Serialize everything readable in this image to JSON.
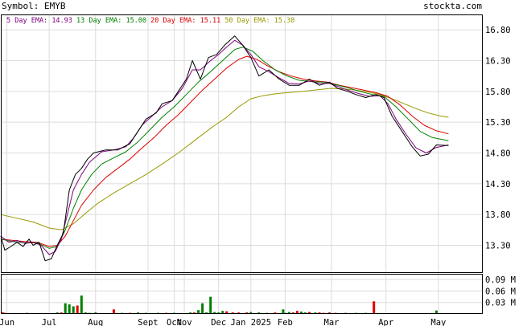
{
  "header": {
    "symbol_label": "Symbol: EMYB",
    "site": "stockta.com"
  },
  "legend": [
    {
      "label": "5 Day EMA:",
      "value": "14.93",
      "color": "#800080"
    },
    {
      "label": "13 Day EMA:",
      "value": "15.00",
      "color": "#008000"
    },
    {
      "label": "20 Day EMA:",
      "value": "15.11",
      "color": "#dd0000"
    },
    {
      "label": "50 Day EMA:",
      "value": "15.38",
      "color": "#999900"
    }
  ],
  "chart_data": {
    "type": "line",
    "price_axis": {
      "range": [
        12.85,
        17.05
      ],
      "ticks": [
        16.8,
        16.3,
        15.8,
        15.3,
        14.8,
        14.3,
        13.8,
        13.3
      ],
      "tick_labels": [
        "16.80",
        "16.30",
        "15.80",
        "15.30",
        "14.80",
        "14.30",
        "13.80",
        "13.30"
      ]
    },
    "volume_axis": {
      "range": [
        0,
        0.105
      ],
      "ticks": [
        0.09,
        0.06,
        0.03
      ],
      "tick_labels": [
        "0.09 M",
        "0.06 M",
        "0.03 M"
      ]
    },
    "x_range": [
      0,
      239
    ],
    "x_ticks": [
      {
        "label": "Jun",
        "x": 3
      },
      {
        "label": "Jul",
        "x": 24
      },
      {
        "label": "Aug",
        "x": 47
      },
      {
        "label": "Sept",
        "x": 73
      },
      {
        "label": "Oct",
        "x": 86
      },
      {
        "label": "Nov",
        "x": 91
      },
      {
        "label": "Dec",
        "x": 108
      },
      {
        "label": "Jan 2025",
        "x": 124
      },
      {
        "label": "Feb",
        "x": 141
      },
      {
        "label": "Mar",
        "x": 164
      },
      {
        "label": "Apr",
        "x": 191
      },
      {
        "label": "May",
        "x": 217
      }
    ],
    "close": [
      [
        0,
        13.45
      ],
      [
        2,
        13.22
      ],
      [
        5,
        13.28
      ],
      [
        8,
        13.35
      ],
      [
        11,
        13.28
      ],
      [
        14,
        13.4
      ],
      [
        16,
        13.3
      ],
      [
        19,
        13.35
      ],
      [
        22,
        13.05
      ],
      [
        25,
        13.08
      ],
      [
        28,
        13.3
      ],
      [
        31,
        13.5
      ],
      [
        34,
        14.2
      ],
      [
        37,
        14.45
      ],
      [
        40,
        14.55
      ],
      [
        43,
        14.7
      ],
      [
        46,
        14.8
      ],
      [
        52,
        14.85
      ],
      [
        58,
        14.85
      ],
      [
        64,
        14.95
      ],
      [
        68,
        15.15
      ],
      [
        72,
        15.35
      ],
      [
        77,
        15.45
      ],
      [
        80,
        15.6
      ],
      [
        85,
        15.65
      ],
      [
        88,
        15.8
      ],
      [
        92,
        16.0
      ],
      [
        95,
        16.3
      ],
      [
        99,
        16.0
      ],
      [
        103,
        16.35
      ],
      [
        107,
        16.4
      ],
      [
        111,
        16.55
      ],
      [
        116,
        16.7
      ],
      [
        120,
        16.55
      ],
      [
        124,
        16.35
      ],
      [
        128,
        16.05
      ],
      [
        133,
        16.15
      ],
      [
        138,
        16.0
      ],
      [
        143,
        15.9
      ],
      [
        148,
        15.9
      ],
      [
        153,
        16.0
      ],
      [
        158,
        15.9
      ],
      [
        163,
        15.95
      ],
      [
        167,
        15.85
      ],
      [
        172,
        15.8
      ],
      [
        176,
        15.75
      ],
      [
        181,
        15.7
      ],
      [
        186,
        15.75
      ],
      [
        190,
        15.7
      ],
      [
        194,
        15.4
      ],
      [
        198,
        15.2
      ],
      [
        204,
        14.9
      ],
      [
        208,
        14.75
      ],
      [
        212,
        14.78
      ],
      [
        216,
        14.93
      ],
      [
        222,
        14.92
      ]
    ],
    "series": [
      {
        "name": "5 Day EMA",
        "color": "#800080",
        "values": [
          [
            0,
            13.45
          ],
          [
            4,
            13.35
          ],
          [
            8,
            13.38
          ],
          [
            12,
            13.33
          ],
          [
            16,
            13.35
          ],
          [
            20,
            13.3
          ],
          [
            24,
            13.15
          ],
          [
            27,
            13.2
          ],
          [
            30,
            13.4
          ],
          [
            33,
            13.8
          ],
          [
            36,
            14.2
          ],
          [
            40,
            14.45
          ],
          [
            44,
            14.65
          ],
          [
            50,
            14.82
          ],
          [
            56,
            14.85
          ],
          [
            62,
            14.9
          ],
          [
            66,
            15.05
          ],
          [
            70,
            15.25
          ],
          [
            75,
            15.4
          ],
          [
            80,
            15.55
          ],
          [
            85,
            15.65
          ],
          [
            90,
            15.85
          ],
          [
            95,
            16.15
          ],
          [
            99,
            16.15
          ],
          [
            104,
            16.3
          ],
          [
            108,
            16.4
          ],
          [
            112,
            16.52
          ],
          [
            116,
            16.63
          ],
          [
            120,
            16.55
          ],
          [
            124,
            16.4
          ],
          [
            128,
            16.2
          ],
          [
            133,
            16.12
          ],
          [
            138,
            16.02
          ],
          [
            143,
            15.93
          ],
          [
            148,
            15.92
          ],
          [
            153,
            15.97
          ],
          [
            158,
            15.93
          ],
          [
            163,
            15.93
          ],
          [
            168,
            15.87
          ],
          [
            173,
            15.81
          ],
          [
            178,
            15.76
          ],
          [
            183,
            15.72
          ],
          [
            188,
            15.73
          ],
          [
            192,
            15.6
          ],
          [
            196,
            15.35
          ],
          [
            201,
            15.1
          ],
          [
            206,
            14.88
          ],
          [
            211,
            14.8
          ],
          [
            216,
            14.89
          ],
          [
            222,
            14.93
          ]
        ]
      },
      {
        "name": "13 Day EMA",
        "color": "#008000",
        "values": [
          [
            0,
            13.4
          ],
          [
            6,
            13.36
          ],
          [
            12,
            13.34
          ],
          [
            18,
            13.34
          ],
          [
            24,
            13.25
          ],
          [
            28,
            13.28
          ],
          [
            32,
            13.55
          ],
          [
            36,
            13.9
          ],
          [
            40,
            14.2
          ],
          [
            45,
            14.45
          ],
          [
            50,
            14.62
          ],
          [
            56,
            14.72
          ],
          [
            62,
            14.82
          ],
          [
            68,
            14.98
          ],
          [
            74,
            15.18
          ],
          [
            80,
            15.38
          ],
          [
            86,
            15.55
          ],
          [
            92,
            15.75
          ],
          [
            98,
            15.95
          ],
          [
            104,
            16.12
          ],
          [
            110,
            16.3
          ],
          [
            116,
            16.48
          ],
          [
            120,
            16.52
          ],
          [
            125,
            16.45
          ],
          [
            130,
            16.3
          ],
          [
            136,
            16.15
          ],
          [
            142,
            16.05
          ],
          [
            148,
            15.98
          ],
          [
            154,
            15.96
          ],
          [
            160,
            15.95
          ],
          [
            166,
            15.91
          ],
          [
            172,
            15.86
          ],
          [
            178,
            15.8
          ],
          [
            184,
            15.75
          ],
          [
            190,
            15.72
          ],
          [
            196,
            15.55
          ],
          [
            202,
            15.35
          ],
          [
            208,
            15.15
          ],
          [
            214,
            15.05
          ],
          [
            222,
            15.0
          ]
        ]
      },
      {
        "name": "20 Day EMA",
        "color": "#dd0000",
        "values": [
          [
            0,
            13.4
          ],
          [
            6,
            13.38
          ],
          [
            12,
            13.36
          ],
          [
            18,
            13.35
          ],
          [
            24,
            13.28
          ],
          [
            28,
            13.3
          ],
          [
            32,
            13.45
          ],
          [
            36,
            13.7
          ],
          [
            40,
            13.95
          ],
          [
            46,
            14.2
          ],
          [
            52,
            14.4
          ],
          [
            58,
            14.55
          ],
          [
            64,
            14.7
          ],
          [
            70,
            14.88
          ],
          [
            76,
            15.05
          ],
          [
            82,
            15.25
          ],
          [
            88,
            15.42
          ],
          [
            94,
            15.62
          ],
          [
            100,
            15.82
          ],
          [
            106,
            16.0
          ],
          [
            112,
            16.18
          ],
          [
            118,
            16.32
          ],
          [
            122,
            16.37
          ],
          [
            127,
            16.32
          ],
          [
            132,
            16.22
          ],
          [
            138,
            16.12
          ],
          [
            144,
            16.05
          ],
          [
            150,
            16.0
          ],
          [
            156,
            15.97
          ],
          [
            162,
            15.95
          ],
          [
            168,
            15.9
          ],
          [
            174,
            15.86
          ],
          [
            180,
            15.82
          ],
          [
            186,
            15.78
          ],
          [
            192,
            15.72
          ],
          [
            198,
            15.58
          ],
          [
            204,
            15.4
          ],
          [
            210,
            15.25
          ],
          [
            216,
            15.16
          ],
          [
            222,
            15.11
          ]
        ]
      },
      {
        "name": "50 Day EMA",
        "color": "#999900",
        "values": [
          [
            0,
            13.8
          ],
          [
            8,
            13.74
          ],
          [
            16,
            13.68
          ],
          [
            24,
            13.58
          ],
          [
            30,
            13.55
          ],
          [
            36,
            13.65
          ],
          [
            42,
            13.82
          ],
          [
            48,
            13.98
          ],
          [
            56,
            14.15
          ],
          [
            64,
            14.3
          ],
          [
            72,
            14.45
          ],
          [
            80,
            14.62
          ],
          [
            88,
            14.8
          ],
          [
            96,
            15.0
          ],
          [
            104,
            15.2
          ],
          [
            112,
            15.38
          ],
          [
            118,
            15.55
          ],
          [
            124,
            15.68
          ],
          [
            130,
            15.73
          ],
          [
            136,
            15.76
          ],
          [
            142,
            15.78
          ],
          [
            150,
            15.8
          ],
          [
            158,
            15.83
          ],
          [
            164,
            15.85
          ],
          [
            170,
            15.84
          ],
          [
            176,
            15.82
          ],
          [
            182,
            15.79
          ],
          [
            188,
            15.75
          ],
          [
            194,
            15.68
          ],
          [
            200,
            15.6
          ],
          [
            206,
            15.52
          ],
          [
            212,
            15.45
          ],
          [
            218,
            15.4
          ],
          [
            222,
            15.38
          ]
        ]
      }
    ],
    "volume": [
      {
        "x": 1,
        "v": 0.004,
        "color": "#dd0000"
      },
      {
        "x": 2,
        "v": 0.003,
        "color": "#dd0000"
      },
      {
        "x": 13,
        "v": 0.003,
        "color": "#008000"
      },
      {
        "x": 20,
        "v": 0.002,
        "color": "#dd0000"
      },
      {
        "x": 28,
        "v": 0.004,
        "color": "#008000"
      },
      {
        "x": 30,
        "v": 0.004,
        "color": "#dd0000"
      },
      {
        "x": 32,
        "v": 0.028,
        "color": "#008000"
      },
      {
        "x": 34,
        "v": 0.025,
        "color": "#008000"
      },
      {
        "x": 36,
        "v": 0.02,
        "color": "#008000"
      },
      {
        "x": 38,
        "v": 0.022,
        "color": "#dd0000"
      },
      {
        "x": 40,
        "v": 0.048,
        "color": "#008000"
      },
      {
        "x": 42,
        "v": 0.004,
        "color": "#008000"
      },
      {
        "x": 44,
        "v": 0.003,
        "color": "#008000"
      },
      {
        "x": 47,
        "v": 0.004,
        "color": "#008000"
      },
      {
        "x": 56,
        "v": 0.012,
        "color": "#dd0000"
      },
      {
        "x": 60,
        "v": 0.003,
        "color": "#008000"
      },
      {
        "x": 64,
        "v": 0.003,
        "color": "#dd0000"
      },
      {
        "x": 68,
        "v": 0.004,
        "color": "#008000"
      },
      {
        "x": 72,
        "v": 0.003,
        "color": "#008000"
      },
      {
        "x": 78,
        "v": 0.003,
        "color": "#008000"
      },
      {
        "x": 82,
        "v": 0.003,
        "color": "#dd0000"
      },
      {
        "x": 86,
        "v": 0.003,
        "color": "#008000"
      },
      {
        "x": 94,
        "v": 0.004,
        "color": "#008000"
      },
      {
        "x": 96,
        "v": 0.004,
        "color": "#dd0000"
      },
      {
        "x": 98,
        "v": 0.01,
        "color": "#008000"
      },
      {
        "x": 100,
        "v": 0.028,
        "color": "#008000"
      },
      {
        "x": 102,
        "v": 0.004,
        "color": "#008000"
      },
      {
        "x": 104,
        "v": 0.045,
        "color": "#008000"
      },
      {
        "x": 106,
        "v": 0.005,
        "color": "#008000"
      },
      {
        "x": 108,
        "v": 0.004,
        "color": "#008000"
      },
      {
        "x": 110,
        "v": 0.008,
        "color": "#008000"
      },
      {
        "x": 112,
        "v": 0.007,
        "color": "#dd0000"
      },
      {
        "x": 115,
        "v": 0.004,
        "color": "#dd0000"
      },
      {
        "x": 118,
        "v": 0.004,
        "color": "#dd0000"
      },
      {
        "x": 122,
        "v": 0.004,
        "color": "#dd0000"
      },
      {
        "x": 124,
        "v": 0.005,
        "color": "#008000"
      },
      {
        "x": 128,
        "v": 0.004,
        "color": "#008000"
      },
      {
        "x": 132,
        "v": 0.003,
        "color": "#008000"
      },
      {
        "x": 136,
        "v": 0.004,
        "color": "#dd0000"
      },
      {
        "x": 140,
        "v": 0.004,
        "color": "#dd0000"
      },
      {
        "x": 141,
        "v": 0.003,
        "color": "#008000"
      },
      {
        "x": 140,
        "v": 0.012,
        "color": "#008000"
      },
      {
        "x": 143,
        "v": 0.005,
        "color": "#008000"
      },
      {
        "x": 145,
        "v": 0.004,
        "color": "#dd0000"
      },
      {
        "x": 147,
        "v": 0.008,
        "color": "#dd0000"
      },
      {
        "x": 149,
        "v": 0.006,
        "color": "#008000"
      },
      {
        "x": 151,
        "v": 0.004,
        "color": "#008000"
      },
      {
        "x": 153,
        "v": 0.005,
        "color": "#dd0000"
      },
      {
        "x": 156,
        "v": 0.004,
        "color": "#008000"
      },
      {
        "x": 158,
        "v": 0.004,
        "color": "#dd0000"
      },
      {
        "x": 160,
        "v": 0.003,
        "color": "#dd0000"
      },
      {
        "x": 163,
        "v": 0.004,
        "color": "#dd0000"
      },
      {
        "x": 166,
        "v": 0.003,
        "color": "#dd0000"
      },
      {
        "x": 171,
        "v": 0.003,
        "color": "#008000"
      },
      {
        "x": 176,
        "v": 0.003,
        "color": "#008000"
      },
      {
        "x": 181,
        "v": 0.003,
        "color": "#008000"
      },
      {
        "x": 185,
        "v": 0.033,
        "color": "#dd0000"
      },
      {
        "x": 216,
        "v": 0.009,
        "color": "#008000"
      }
    ]
  }
}
